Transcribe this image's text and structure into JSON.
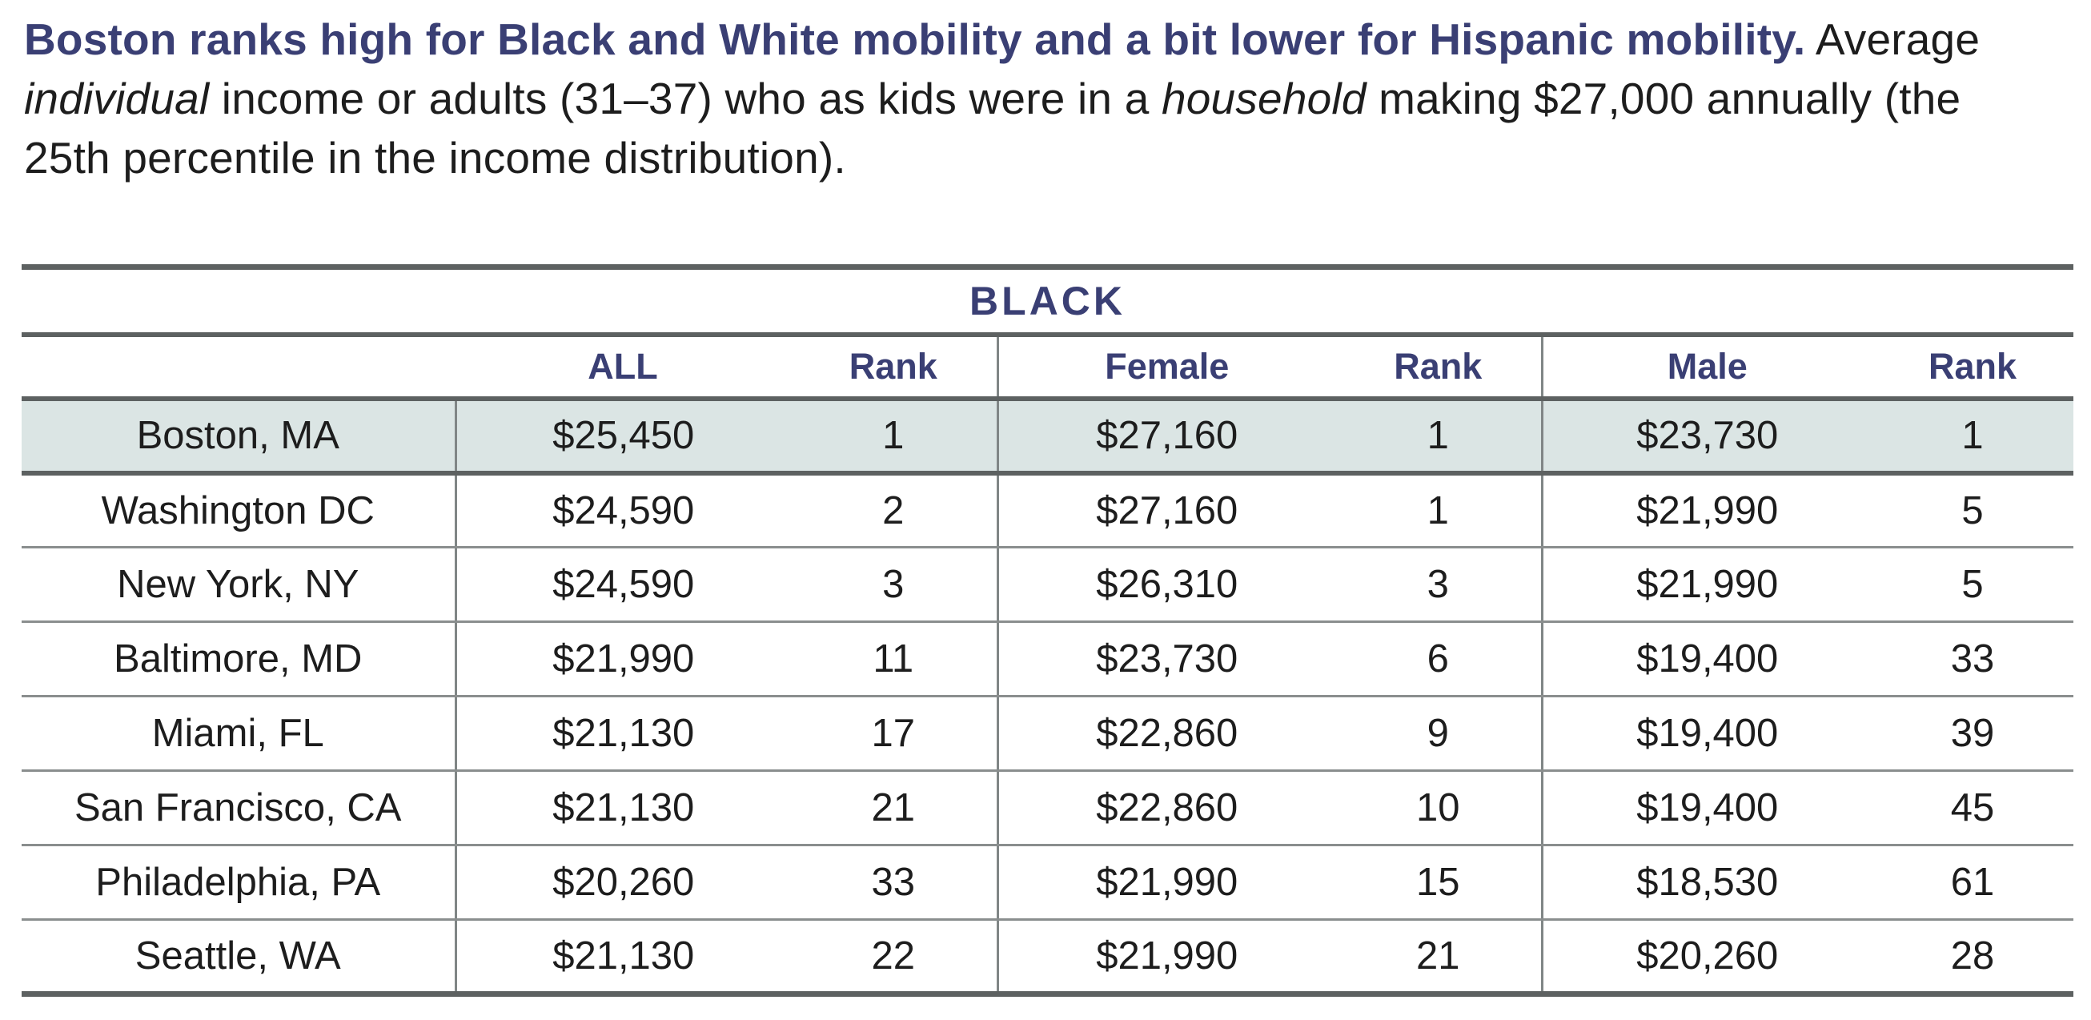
{
  "title": {
    "line1_bold": "Boston ranks high for Black and White mobility and a bit lower for",
    "line2_bold": "Hispanic mobility.",
    "line2_segments": [
      {
        "text": " Average ",
        "italic": false
      },
      {
        "text": "individual",
        "italic": true
      },
      {
        "text": " income or adults (31–37) who as kids were in",
        "italic": false
      }
    ],
    "line3_segments": [
      {
        "text": "a ",
        "italic": false
      },
      {
        "text": "household",
        "italic": true
      },
      {
        "text": " making $27,000 annually (the 25th percentile in the income distribution).",
        "italic": false
      }
    ]
  },
  "table": {
    "group_header": "BLACK",
    "columns": [
      "",
      "ALL",
      "Rank",
      "Female",
      "Rank",
      "Male",
      "Rank"
    ],
    "rows": [
      {
        "city": "Boston, MA",
        "all": "$25,450",
        "all_rank": "1",
        "female": "$27,160",
        "female_rank": "1",
        "male": "$23,730",
        "male_rank": "1",
        "highlight": true
      },
      {
        "city": "Washington DC",
        "all": "$24,590",
        "all_rank": "2",
        "female": "$27,160",
        "female_rank": "1",
        "male": "$21,990",
        "male_rank": "5",
        "highlight": false
      },
      {
        "city": "New York, NY",
        "all": "$24,590",
        "all_rank": "3",
        "female": "$26,310",
        "female_rank": "3",
        "male": "$21,990",
        "male_rank": "5",
        "highlight": false
      },
      {
        "city": "Baltimore, MD",
        "all": "$21,990",
        "all_rank": "11",
        "female": "$23,730",
        "female_rank": "6",
        "male": "$19,400",
        "male_rank": "33",
        "highlight": false
      },
      {
        "city": "Miami, FL",
        "all": "$21,130",
        "all_rank": "17",
        "female": "$22,860",
        "female_rank": "9",
        "male": "$19,400",
        "male_rank": "39",
        "highlight": false
      },
      {
        "city": "San Francisco, CA",
        "all": "$21,130",
        "all_rank": "21",
        "female": "$22,860",
        "female_rank": "10",
        "male": "$19,400",
        "male_rank": "45",
        "highlight": false
      },
      {
        "city": "Philadelphia, PA",
        "all": "$20,260",
        "all_rank": "33",
        "female": "$21,990",
        "female_rank": "15",
        "male": "$18,530",
        "male_rank": "61",
        "highlight": false
      },
      {
        "city": "Seattle, WA",
        "all": "$21,130",
        "all_rank": "22",
        "female": "$21,990",
        "female_rank": "21",
        "male": "$20,260",
        "male_rank": "28",
        "highlight": false
      }
    ]
  },
  "colors": {
    "navy": "#3a3f74",
    "text_dark": "#1d1d1d",
    "rule_dark": "#5d6161",
    "rule_light": "#8a8e8e",
    "divider": "#808686",
    "highlight_bg": "#dbe5e4",
    "page_bg": "#ffffff"
  }
}
